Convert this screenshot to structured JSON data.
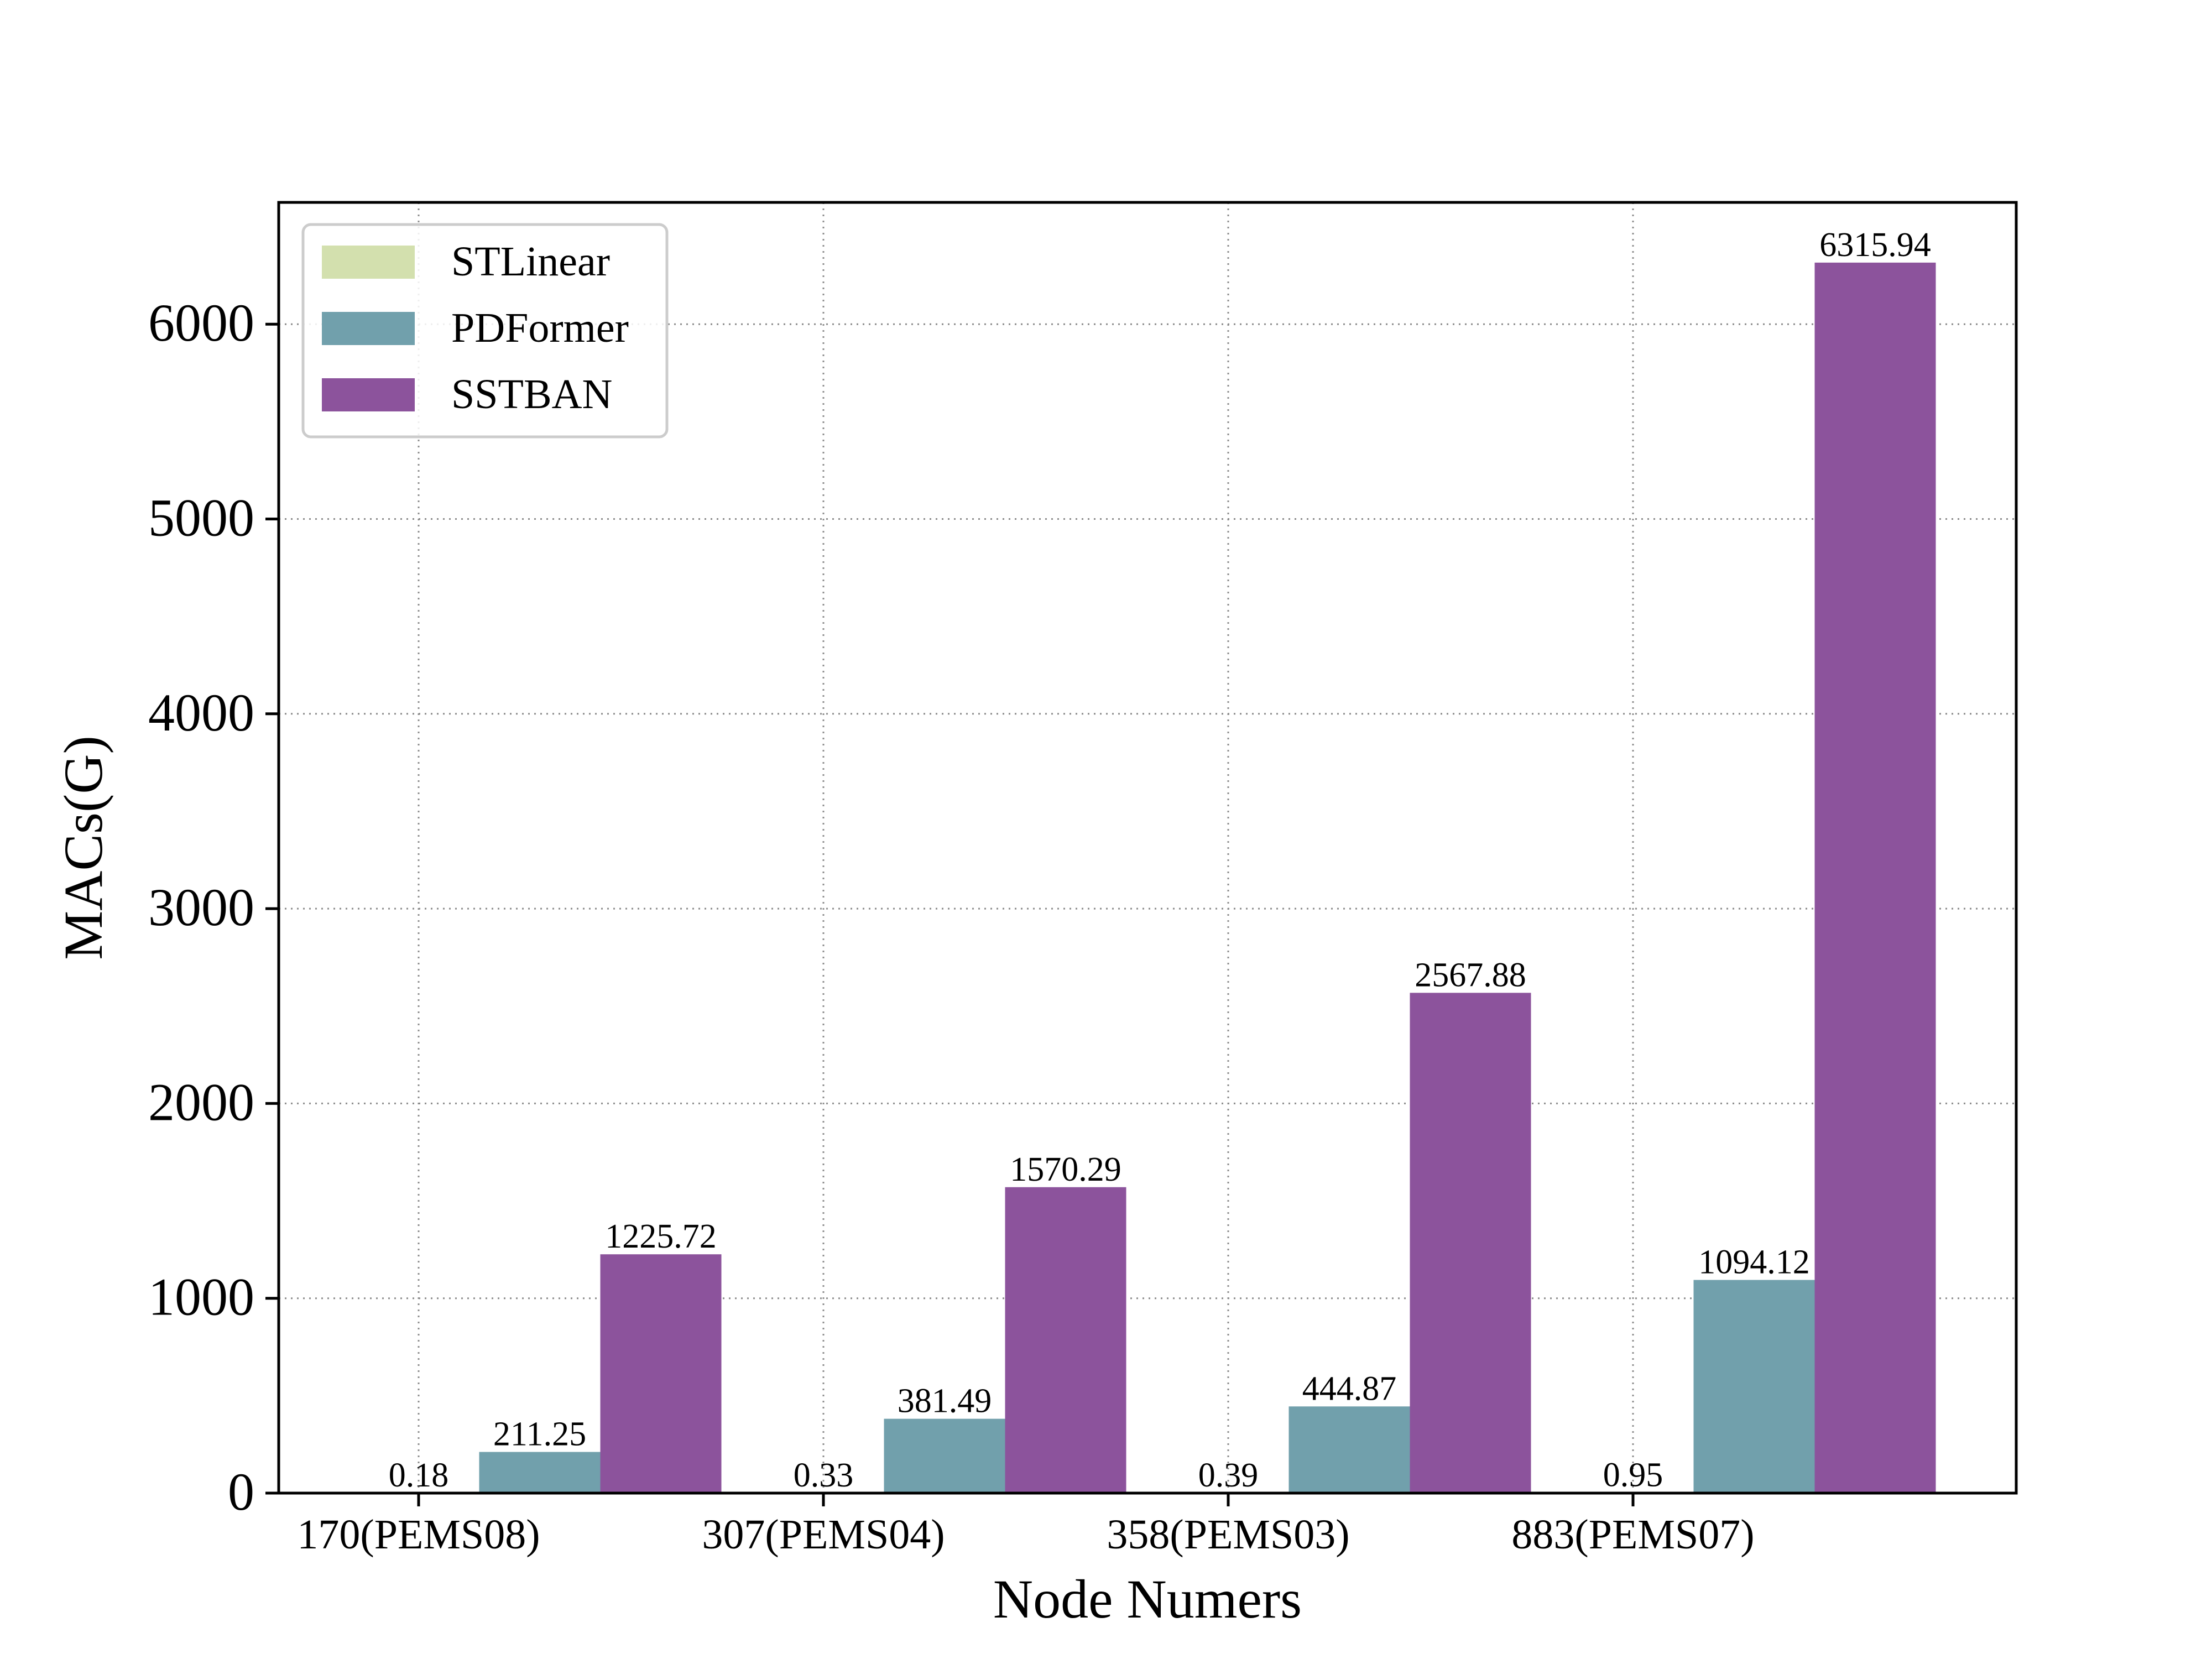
{
  "chart_data": {
    "type": "bar",
    "title": "",
    "xlabel": "Node Numers",
    "ylabel": "MACs(G)",
    "categories": [
      "170(PEMS08)",
      "307(PEMS04)",
      "358(PEMS03)",
      "883(PEMS07)"
    ],
    "series": [
      {
        "name": "STLinear",
        "color": "#d3e0ae",
        "values": [
          0.18,
          0.33,
          0.39,
          0.95
        ],
        "labels": [
          "0.18",
          "0.33",
          "0.39",
          "0.95"
        ]
      },
      {
        "name": "PDFormer",
        "color": "#71a0ac",
        "values": [
          211.25,
          381.49,
          444.87,
          1094.12
        ],
        "labels": [
          "211.25",
          "381.49",
          "444.87",
          "1094.12"
        ]
      },
      {
        "name": "SSTBAN",
        "color": "#8c539c",
        "values": [
          1225.72,
          1570.29,
          2567.88,
          6315.94
        ],
        "labels": [
          "1225.72",
          "1570.29",
          "2567.88",
          "6315.94"
        ]
      }
    ],
    "ylim": [
      0,
      6625
    ],
    "yticks": [
      0,
      1000,
      2000,
      3000,
      4000,
      5000,
      6000
    ],
    "ytick_labels": [
      "0",
      "1000",
      "2000",
      "3000",
      "4000",
      "5000",
      "6000"
    ],
    "grid": true,
    "grid_style": "dotted",
    "legend_position": "top-left"
  }
}
